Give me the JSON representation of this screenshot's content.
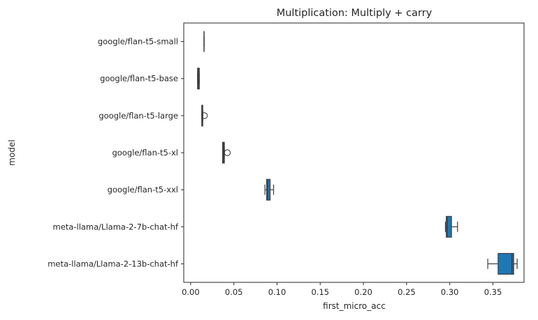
{
  "chart_data": {
    "type": "boxplot",
    "orientation": "horizontal",
    "title": "Multiplication: Multiply + carry",
    "xlabel": "first_micro_acc",
    "ylabel": "model",
    "xlim": [
      -0.008,
      0.386
    ],
    "xticks": [
      0.0,
      0.05,
      0.1,
      0.15,
      0.2,
      0.25,
      0.3,
      0.35
    ],
    "xtick_labels": [
      "0.00",
      "0.05",
      "0.10",
      "0.15",
      "0.20",
      "0.25",
      "0.30",
      "0.35"
    ],
    "box_color": "#1f77b4",
    "line_color": "#3d3d3d",
    "grid": false,
    "categories": [
      "google/flan-t5-small",
      "google/flan-t5-base",
      "google/flan-t5-large",
      "google/flan-t5-xl",
      "google/flan-t5-xxl",
      "meta-llama/Llama-2-7b-chat-hf",
      "meta-llama/Llama-2-13b-chat-hf"
    ],
    "boxes": [
      {
        "whisker_low": 0.0155,
        "q1": 0.0155,
        "median": 0.0155,
        "q3": 0.0155,
        "whisker_high": 0.0155,
        "outliers": []
      },
      {
        "whisker_low": 0.008,
        "q1": 0.008,
        "median": 0.009,
        "q3": 0.01,
        "whisker_high": 0.01,
        "outliers": []
      },
      {
        "whisker_low": 0.013,
        "q1": 0.013,
        "median": 0.013,
        "q3": 0.014,
        "whisker_high": 0.014,
        "outliers": [
          0.016
        ]
      },
      {
        "whisker_low": 0.037,
        "q1": 0.037,
        "median": 0.038,
        "q3": 0.039,
        "whisker_high": 0.039,
        "outliers": [
          0.0425
        ]
      },
      {
        "whisker_low": 0.086,
        "q1": 0.088,
        "median": 0.089,
        "q3": 0.092,
        "whisker_high": 0.096,
        "outliers": []
      },
      {
        "whisker_low": 0.295,
        "q1": 0.296,
        "median": 0.297,
        "q3": 0.302,
        "whisker_high": 0.309,
        "outliers": []
      },
      {
        "whisker_low": 0.344,
        "q1": 0.356,
        "median": 0.372,
        "q3": 0.374,
        "whisker_high": 0.378,
        "outliers": []
      }
    ]
  }
}
